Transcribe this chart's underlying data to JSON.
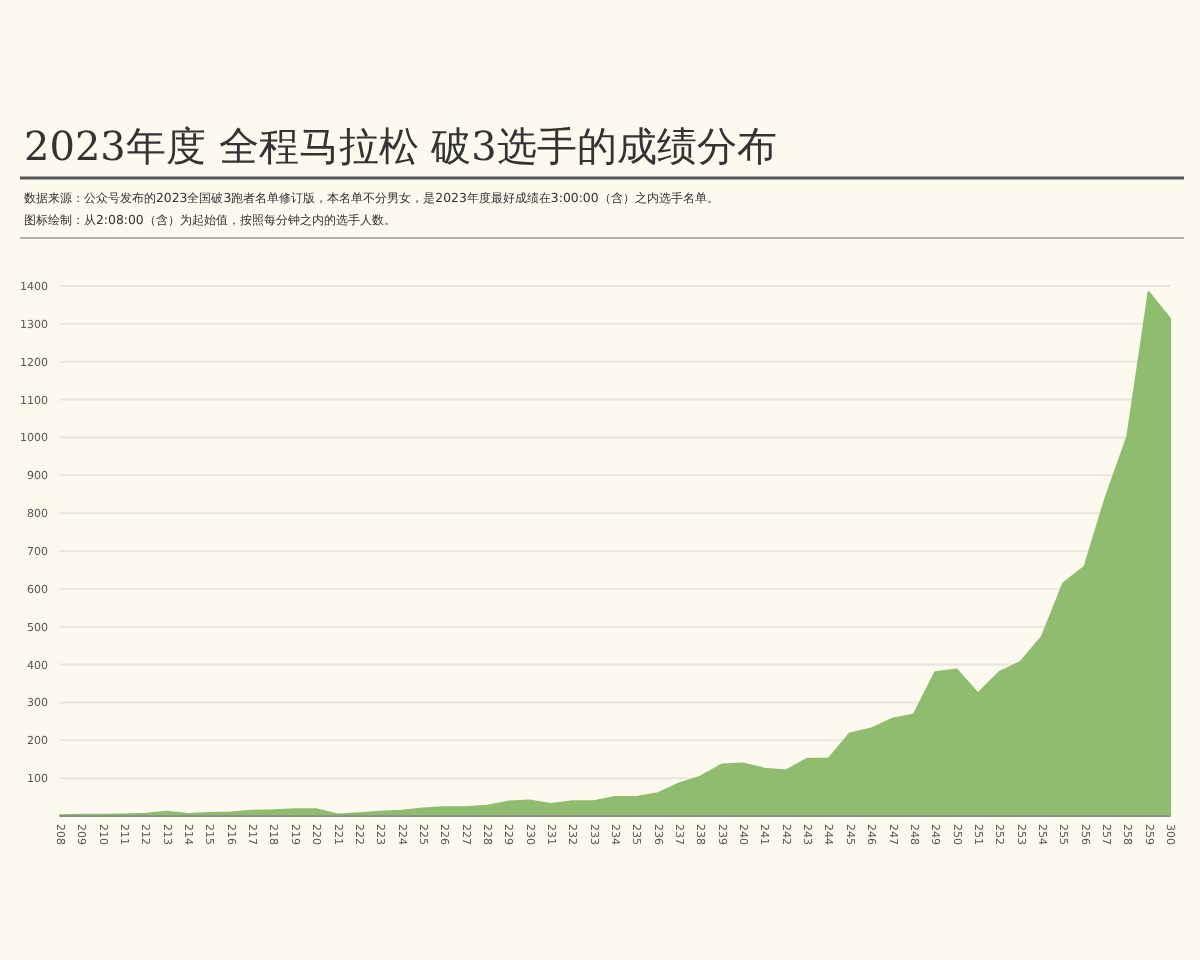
{
  "chart_data": {
    "type": "area",
    "title": "2023年度 全程马拉松 破3选手的成绩分布",
    "annotations": [
      "数据来源：公众号发布的2023全国破3跑者名单修订版，本名单不分男女，是2023年度最好成绩在3:00:00（含）之内选手名单。",
      "图标绘制：从2:08:00（含）为起始值，按照每分钟之内的选手人数。"
    ],
    "categories": [
      "208",
      "209",
      "210",
      "211",
      "212",
      "213",
      "214",
      "215",
      "216",
      "217",
      "218",
      "219",
      "220",
      "221",
      "222",
      "223",
      "224",
      "225",
      "226",
      "227",
      "228",
      "229",
      "230",
      "231",
      "232",
      "233",
      "234",
      "235",
      "236",
      "237",
      "238",
      "239",
      "240",
      "241",
      "242",
      "243",
      "244",
      "245",
      "246",
      "247",
      "248",
      "249",
      "250",
      "251",
      "252",
      "253",
      "254",
      "255",
      "256",
      "257",
      "258",
      "259",
      "300"
    ],
    "values": [
      2,
      3,
      3,
      4,
      6,
      11,
      5,
      8,
      9,
      14,
      15,
      18,
      18,
      4,
      7,
      11,
      14,
      20,
      23,
      23,
      27,
      38,
      41,
      32,
      39,
      39,
      50,
      50,
      60,
      86,
      104,
      136,
      139,
      125,
      120,
      151,
      151,
      218,
      231,
      257,
      268,
      380,
      387,
      324,
      380,
      407,
      474,
      615,
      659,
      844,
      1002,
      1384,
      1314
    ],
    "color": "#8fbc6f",
    "ylim": [
      0,
      1400
    ],
    "yticks": [
      100,
      200,
      300,
      400,
      500,
      600,
      700,
      800,
      900,
      1000,
      1100,
      1200,
      1300,
      1400
    ],
    "grid": "y"
  }
}
